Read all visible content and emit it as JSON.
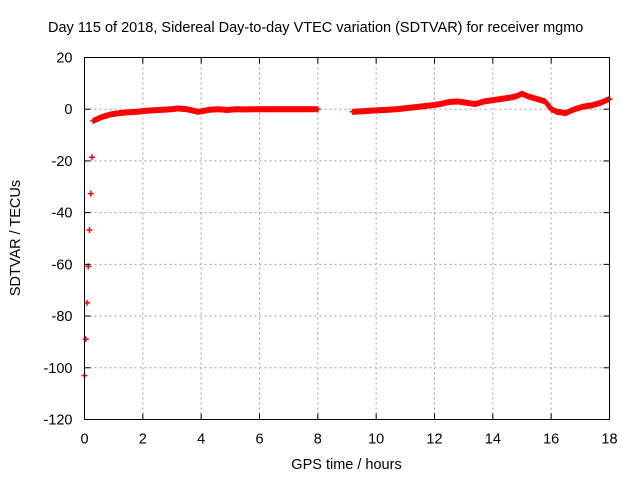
{
  "chart_data": {
    "type": "scatter",
    "title": "Day 115 of 2018, Sidereal Day-to-day VTEC variation (SDTVAR) for receiver mgmo",
    "xlabel": "GPS time / hours",
    "ylabel": "SDTVAR / TECUs",
    "xlim": [
      0,
      18
    ],
    "ylim": [
      -120,
      20
    ],
    "xticks": [
      "0",
      "2",
      "4",
      "6",
      "8",
      "10",
      "12",
      "14",
      "16",
      "18"
    ],
    "yticks": [
      "20",
      "0",
      "-20",
      "-40",
      "-60",
      "-80",
      "-100",
      "-120"
    ],
    "grid": true,
    "marker_color": "#ff0000",
    "series": [
      {
        "name": "SDTVAR",
        "x": [
          0.0,
          0.3,
          0.6,
          0.9,
          1.2,
          1.5,
          1.8,
          2.1,
          2.4,
          2.7,
          3.0,
          3.2,
          3.5,
          3.9,
          4.0,
          4.3,
          4.6,
          4.9,
          5.2,
          5.5,
          5.8,
          6.1,
          6.5,
          6.9,
          7.3,
          7.7,
          8.0,
          9.2,
          9.5,
          9.9,
          10.3,
          10.7,
          11.1,
          11.5,
          11.9,
          12.2,
          12.5,
          12.8,
          13.1,
          13.4,
          13.7,
          14.0,
          14.3,
          14.6,
          14.8,
          15.0,
          15.2,
          15.5,
          15.8,
          16.0,
          16.2,
          16.5,
          16.8,
          17.1,
          17.4,
          17.7,
          18.0
        ],
        "y": [
          -103,
          -4.5,
          -3,
          -2,
          -1.5,
          -1.2,
          -1,
          -0.6,
          -0.4,
          -0.2,
          0,
          0.3,
          0,
          -1,
          -0.8,
          -0.2,
          0,
          -0.3,
          0,
          -0.1,
          0,
          0,
          0,
          0,
          0,
          0,
          0,
          -1,
          -0.8,
          -0.5,
          -0.3,
          0,
          0.5,
          1,
          1.5,
          2,
          2.8,
          3,
          2.5,
          2,
          3,
          3.5,
          4,
          4.5,
          5,
          6,
          5,
          4,
          3,
          0,
          -1,
          -1.5,
          0,
          1,
          1.5,
          2.5,
          4
        ]
      }
    ]
  }
}
